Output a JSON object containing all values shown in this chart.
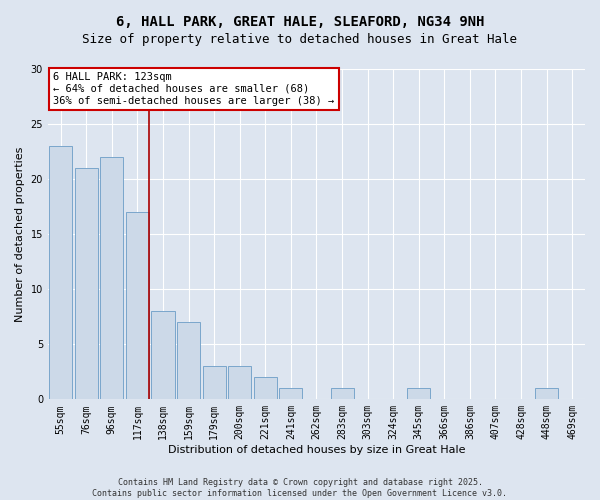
{
  "title_line1": "6, HALL PARK, GREAT HALE, SLEAFORD, NG34 9NH",
  "title_line2": "Size of property relative to detached houses in Great Hale",
  "xlabel": "Distribution of detached houses by size in Great Hale",
  "ylabel": "Number of detached properties",
  "categories": [
    "55sqm",
    "76sqm",
    "96sqm",
    "117sqm",
    "138sqm",
    "159sqm",
    "179sqm",
    "200sqm",
    "221sqm",
    "241sqm",
    "262sqm",
    "283sqm",
    "303sqm",
    "324sqm",
    "345sqm",
    "366sqm",
    "386sqm",
    "407sqm",
    "428sqm",
    "448sqm",
    "469sqm"
  ],
  "values": [
    23,
    21,
    22,
    17,
    8,
    7,
    3,
    3,
    2,
    1,
    0,
    1,
    0,
    0,
    1,
    0,
    0,
    0,
    0,
    1,
    0
  ],
  "bar_color": "#ccd9e8",
  "bar_edgecolor": "#7aa6cc",
  "vline_color": "#aa0000",
  "annotation_text": "6 HALL PARK: 123sqm\n← 64% of detached houses are smaller (68)\n36% of semi-detached houses are larger (38) →",
  "annotation_box_color": "#ffffff",
  "annotation_box_edgecolor": "#cc0000",
  "ylim": [
    0,
    30
  ],
  "yticks": [
    0,
    5,
    10,
    15,
    20,
    25,
    30
  ],
  "bg_color": "#dde5f0",
  "fig_bg_color": "#dde5f0",
  "footnote": "Contains HM Land Registry data © Crown copyright and database right 2025.\nContains public sector information licensed under the Open Government Licence v3.0.",
  "title_fontsize": 10,
  "subtitle_fontsize": 9,
  "tick_fontsize": 7,
  "label_fontsize": 8,
  "annot_fontsize": 7.5,
  "footnote_fontsize": 6
}
